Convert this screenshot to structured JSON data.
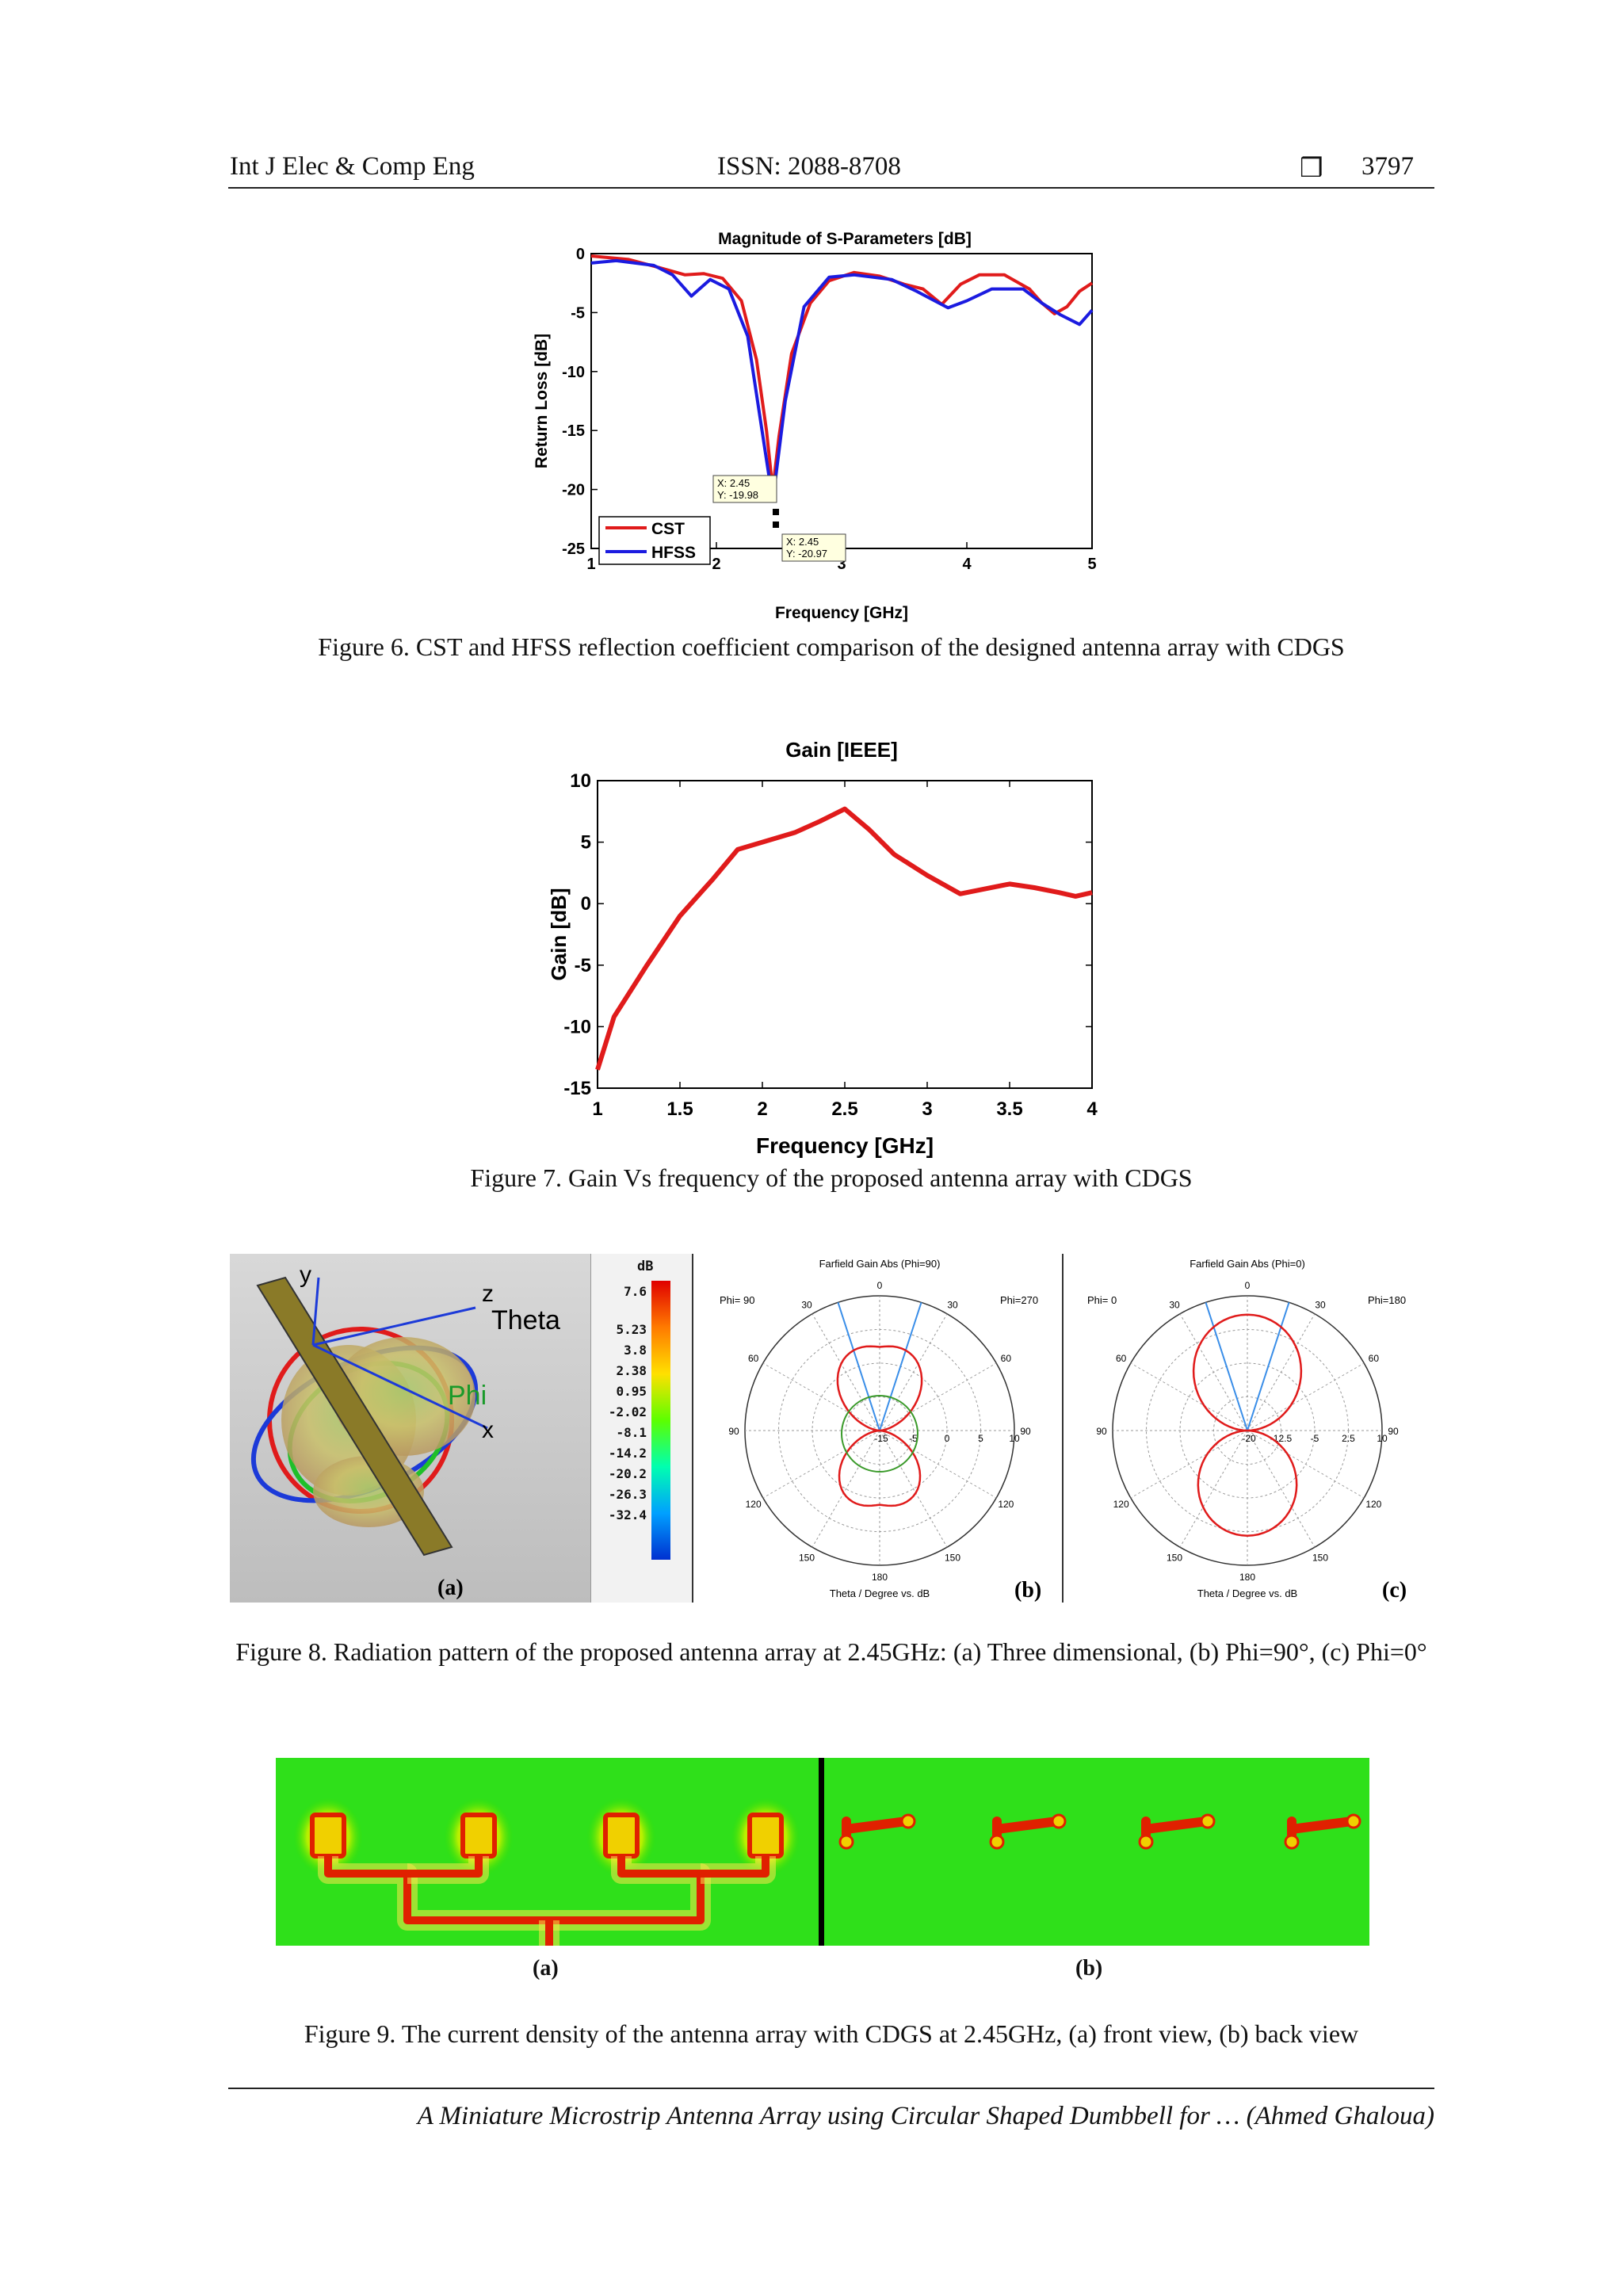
{
  "header": {
    "journal": "Int J Elec & Comp Eng",
    "issn": "ISSN: 2088-8708",
    "symbol": "❒",
    "page": "3797"
  },
  "figure6": {
    "caption": "Figure 6. CST and HFSS reflection coefficient comparison of the designed antenna array with CDGS",
    "chart_data": {
      "type": "line",
      "title": "Magnitude of S-Parameters [dB]",
      "xlabel": "Frequency [GHz]",
      "ylabel": "Return Loss [dB]",
      "xlim": [
        1,
        5
      ],
      "ylim": [
        -25,
        0
      ],
      "xticks": [
        "1",
        "2",
        "3",
        "4",
        "5"
      ],
      "yticks": [
        "0",
        "-5",
        "-10",
        "-15",
        "-20",
        "-25"
      ],
      "legend_position": "bottom-left",
      "series": [
        {
          "name": "CST",
          "color": "#e01b1b",
          "x": [
            1.0,
            1.3,
            1.55,
            1.75,
            1.9,
            2.05,
            2.2,
            2.32,
            2.4,
            2.45,
            2.5,
            2.6,
            2.75,
            2.9,
            3.1,
            3.3,
            3.5,
            3.65,
            3.8,
            3.95,
            4.1,
            4.3,
            4.5,
            4.6,
            4.7,
            4.8,
            4.9,
            5.0
          ],
          "y": [
            -0.2,
            -0.5,
            -1.2,
            -1.8,
            -1.7,
            -2.1,
            -4.0,
            -9.0,
            -15.0,
            -19.98,
            -15.5,
            -8.5,
            -4.2,
            -2.3,
            -1.6,
            -1.9,
            -2.6,
            -3.0,
            -4.3,
            -2.6,
            -1.8,
            -1.8,
            -3.0,
            -4.2,
            -5.1,
            -4.5,
            -3.2,
            -2.5
          ]
        },
        {
          "name": "HFSS",
          "color": "#1b1be0",
          "x": [
            1.0,
            1.2,
            1.5,
            1.65,
            1.8,
            1.95,
            2.1,
            2.25,
            2.35,
            2.45,
            2.55,
            2.7,
            2.9,
            3.1,
            3.4,
            3.6,
            3.85,
            4.0,
            4.2,
            4.45,
            4.6,
            4.75,
            4.9,
            5.0
          ],
          "y": [
            -0.8,
            -0.6,
            -1.0,
            -1.8,
            -3.6,
            -2.2,
            -3.0,
            -7.0,
            -14.0,
            -20.97,
            -12.5,
            -4.5,
            -2.0,
            -1.8,
            -2.2,
            -3.2,
            -4.6,
            -4.0,
            -3.0,
            -3.0,
            -4.2,
            -5.2,
            -6.0,
            -4.8
          ]
        }
      ],
      "annotations": [
        {
          "x_label": "X: 2.45",
          "y_label": "Y: -19.98",
          "x": 2.45,
          "y": -19.98
        },
        {
          "x_label": "X: 2.45",
          "y_label": "Y: -20.97",
          "x": 2.45,
          "y": -20.97
        }
      ]
    }
  },
  "figure7": {
    "caption": "Figure 7. Gain Vs frequency of the proposed antenna array with CDGS",
    "chart_data": {
      "type": "line",
      "title": "Gain [IEEE]",
      "xlabel": "Frequency [GHz]",
      "ylabel": "Gain [dB]",
      "xlim": [
        1,
        4
      ],
      "ylim": [
        -15,
        10
      ],
      "xticks": [
        "1",
        "1.5",
        "2",
        "2.5",
        "3",
        "3.5",
        "4"
      ],
      "yticks": [
        "10",
        "5",
        "0",
        "-5",
        "-10",
        "-15"
      ],
      "series": [
        {
          "name": "",
          "color": "#e01b1b",
          "x": [
            1.0,
            1.1,
            1.3,
            1.5,
            1.7,
            1.85,
            2.0,
            2.2,
            2.35,
            2.5,
            2.65,
            2.8,
            3.0,
            3.2,
            3.35,
            3.5,
            3.65,
            3.8,
            3.9,
            4.0
          ],
          "y": [
            -13.5,
            -9.2,
            -5.0,
            -1.0,
            2.0,
            4.4,
            5.0,
            5.8,
            6.7,
            7.7,
            6.0,
            4.0,
            2.3,
            0.8,
            1.2,
            1.6,
            1.3,
            0.9,
            0.6,
            0.9
          ]
        }
      ]
    }
  },
  "figure8": {
    "caption": "Figure 8. Radiation pattern of the proposed antenna array at 2.45GHz: (a) Three dimensional, (b) Phi=90°, (c) Phi=0°",
    "panel_a": {
      "label": "(a)",
      "scale_unit": "dB",
      "scale_values": [
        "7.6",
        "5.23",
        "3.8",
        "2.38",
        "0.95",
        "-2.02",
        "-8.1",
        "-14.2",
        "-20.2",
        "-26.3",
        "-32.4"
      ],
      "axis_y": "y",
      "axis_z": "z",
      "axis_theta": "Theta",
      "axis_phi": "Phi",
      "axis_x": "x"
    },
    "panel_b": {
      "label": "(b)",
      "title": "Farfield Gain Abs (Phi=90)",
      "left_label": "Phi= 90",
      "right_label": "Phi=270",
      "bottom_label": "Theta / Degree vs. dB",
      "angle_labels": [
        "0",
        "30",
        "30",
        "60",
        "60",
        "90",
        "90",
        "120",
        "120",
        "150",
        "150",
        "180"
      ],
      "radial_labels": [
        "-15",
        "-5",
        "0",
        "5",
        "10"
      ]
    },
    "panel_c": {
      "label": "(c)",
      "title": "Farfield Gain Abs (Phi=0)",
      "left_label": "Phi=  0",
      "right_label": "Phi=180",
      "bottom_label": "Theta / Degree vs. dB",
      "angle_labels": [
        "0",
        "30",
        "30",
        "60",
        "60",
        "90",
        "90",
        "120",
        "120",
        "150",
        "150",
        "180"
      ],
      "radial_labels": [
        "-20",
        "-12.5",
        "-5",
        "2.5",
        "10"
      ]
    }
  },
  "figure9": {
    "caption": "Figure 9. The current density of the antenna array with CDGS at 2.45GHz, (a) front view, (b) back view",
    "label_a": "(a)",
    "label_b": "(b)"
  },
  "footer": {
    "text": "A Miniature Microstrip Antenna Array using Circular Shaped Dumbbell for … (Ahmed Ghaloua)"
  }
}
